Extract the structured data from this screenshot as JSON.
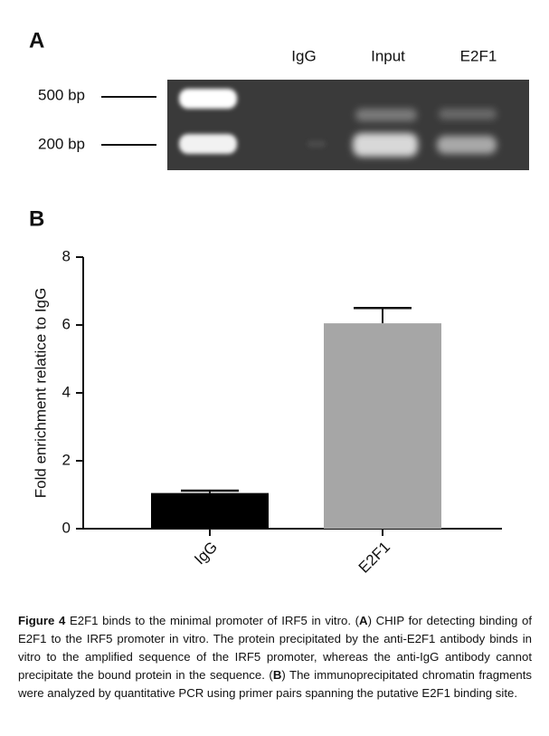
{
  "panel_a": {
    "label": "A",
    "lanes": [
      "IgG",
      "Input",
      "E2F1"
    ],
    "markers": [
      "500 bp",
      "200 bp"
    ]
  },
  "chart_data": {
    "type": "bar",
    "panel_label": "B",
    "ylabel": "Fold enrichment relatice to IgG",
    "categories": [
      "IgG",
      "E2F1"
    ],
    "values": [
      1.05,
      6.05
    ],
    "errors": [
      0.07,
      0.45
    ],
    "colors": [
      "#000000",
      "#a6a6a6"
    ],
    "ylim": [
      0,
      8
    ],
    "yticks": [
      0,
      2,
      4,
      6,
      8
    ]
  },
  "caption": {
    "parts": [
      {
        "text": "Figure 4",
        "bold": true
      },
      {
        "text": " E2F1 binds to the minimal promoter of IRF5 in vitro. ("
      },
      {
        "text": "A",
        "bold": true
      },
      {
        "text": ") CHIP for detecting binding of E2F1 to the IRF5 promoter in vitro. The protein precipitated by the anti-E2F1 antibody binds in vitro to the amplified sequence of the IRF5 promoter, whereas the anti-IgG antibody cannot precipitate the bound protein in the sequence. ("
      },
      {
        "text": "B",
        "bold": true
      },
      {
        "text": ") The immunoprecipitated chromatin fragments were analyzed by quantitative PCR using primer pairs spanning the putative E2F1 binding site."
      }
    ]
  }
}
